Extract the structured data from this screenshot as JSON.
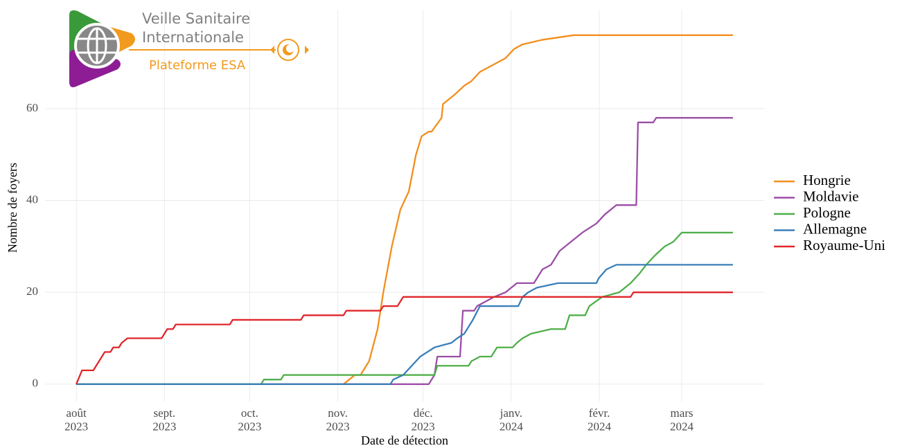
{
  "logo": {
    "line1": "Veille Sanitaire",
    "line2": "Internationale",
    "subtitle": "Plateforme ESA"
  },
  "chart_data": {
    "type": "line",
    "xlabel": "Date de détection",
    "ylabel": "Nombre de foyers",
    "xlim": [
      -11,
      242
    ],
    "ylim": [
      -3.8,
      81.4
    ],
    "xticks": [
      {
        "value": 0,
        "label": "août\n2023"
      },
      {
        "value": 31,
        "label": "sept.\n2023"
      },
      {
        "value": 61,
        "label": "oct.\n2023"
      },
      {
        "value": 92,
        "label": "nov.\n2023"
      },
      {
        "value": 122,
        "label": "déc.\n2023"
      },
      {
        "value": 153,
        "label": "janv.\n2024"
      },
      {
        "value": 184,
        "label": "févr.\n2024"
      },
      {
        "value": 213,
        "label": "mars\n2024"
      }
    ],
    "yticks": [
      0,
      20,
      40,
      60
    ],
    "grid": true,
    "legend": "right",
    "series": [
      {
        "name": "Hongrie",
        "color": "#f28e1c",
        "x": [
          0,
          94,
          96,
          98,
          100,
          103,
          106,
          108,
          111,
          114,
          117,
          119.5,
          121.5,
          124,
          125,
          128.5,
          129,
          133,
          136.5,
          139,
          142,
          145,
          151,
          154,
          157,
          164,
          175,
          231
        ],
        "values": [
          0,
          0,
          1,
          2,
          2,
          5,
          12,
          20,
          30,
          38,
          42,
          50,
          54,
          55,
          55,
          58,
          61,
          63,
          65,
          66,
          68,
          69,
          71,
          73,
          74,
          75,
          76,
          76
        ]
      },
      {
        "name": "Moldavie",
        "color": "#9b4ea6",
        "x": [
          0,
          124,
          126,
          127,
          135,
          136,
          140,
          141,
          147,
          151,
          155,
          161,
          164,
          167,
          170,
          174,
          178,
          183,
          186,
          190,
          197,
          197.6,
          203,
          204,
          231
        ],
        "values": [
          0,
          0,
          2,
          6,
          6,
          16,
          16,
          17,
          19,
          20,
          22,
          22,
          25,
          26,
          29,
          31,
          33,
          35,
          37,
          39,
          39,
          57,
          57,
          58,
          58
        ]
      },
      {
        "name": "Pologne",
        "color": "#4fae4a",
        "x": [
          0,
          65,
          66,
          72,
          73,
          126,
          127,
          138,
          139,
          142,
          146,
          148,
          153.5,
          155,
          157,
          160,
          167,
          172,
          173.5,
          179,
          180.5,
          185,
          191,
          195,
          198,
          200.5,
          203.5,
          207,
          210,
          213,
          231
        ],
        "values": [
          0,
          0,
          1,
          1,
          2,
          2,
          4,
          4,
          5,
          6,
          6,
          8,
          8,
          9,
          10,
          11,
          12,
          12,
          15,
          15,
          17,
          19,
          20,
          22,
          24,
          26,
          28,
          30,
          31,
          33,
          33
        ]
      },
      {
        "name": "Allemagne",
        "color": "#3a7fb8",
        "x": [
          0,
          110.5,
          111.5,
          115,
          121,
          126,
          132,
          134,
          136.5,
          139.5,
          142,
          155.5,
          157,
          159,
          162,
          169.5,
          183,
          183.7,
          186.5,
          190,
          231
        ],
        "values": [
          0,
          0,
          1,
          2,
          6,
          8,
          9,
          10,
          11,
          14,
          17,
          17,
          19,
          20,
          21,
          22,
          22,
          23,
          25,
          26,
          26
        ]
      },
      {
        "name": "Royaume-Uni",
        "color": "#e0262a",
        "x": [
          0,
          2,
          6,
          8,
          10,
          12,
          13,
          15,
          16,
          18,
          30,
          31,
          32,
          34,
          35,
          54,
          55,
          79,
          80,
          94,
          95,
          107,
          108,
          113,
          115,
          195,
          196,
          231
        ],
        "values": [
          0,
          3,
          3,
          5,
          7,
          7,
          8,
          8,
          9,
          10,
          10,
          11,
          12,
          12,
          13,
          13,
          14,
          14,
          15,
          15,
          16,
          16,
          17,
          17,
          19,
          19,
          20,
          20
        ]
      }
    ]
  }
}
